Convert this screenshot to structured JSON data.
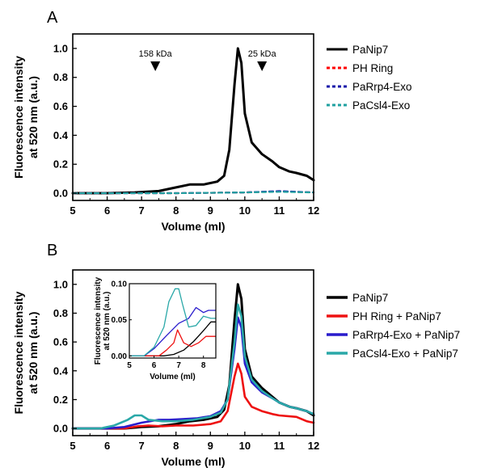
{
  "chart_data": [
    {
      "panel_label": "A",
      "type": "line",
      "xlabel": "Volume (ml)",
      "ylabel": "Fluorescence intensity\nat 520 nm (a.u.)",
      "xlim": [
        5,
        12
      ],
      "ylim": [
        -0.05,
        1.1
      ],
      "xticks": [
        5,
        6,
        7,
        8,
        9,
        10,
        11,
        12
      ],
      "yticks": [
        0.0,
        0.2,
        0.4,
        0.6,
        0.8,
        1.0
      ],
      "markers": [
        {
          "label": "158 kDa",
          "x": 7.4
        },
        {
          "label": "25 kDa",
          "x": 10.5
        }
      ],
      "legend_position": "right",
      "series": [
        {
          "name": "PaNip7",
          "color": "#000000",
          "style": "solid",
          "points": [
            [
              5,
              0.0
            ],
            [
              6,
              0.0
            ],
            [
              6.8,
              0.005
            ],
            [
              7.5,
              0.015
            ],
            [
              8.0,
              0.04
            ],
            [
              8.4,
              0.06
            ],
            [
              8.8,
              0.06
            ],
            [
              9.2,
              0.08
            ],
            [
              9.4,
              0.12
            ],
            [
              9.55,
              0.3
            ],
            [
              9.7,
              0.75
            ],
            [
              9.8,
              1.0
            ],
            [
              9.9,
              0.9
            ],
            [
              10.0,
              0.55
            ],
            [
              10.2,
              0.35
            ],
            [
              10.5,
              0.27
            ],
            [
              10.8,
              0.22
            ],
            [
              11.0,
              0.18
            ],
            [
              11.3,
              0.15
            ],
            [
              11.5,
              0.14
            ],
            [
              11.8,
              0.12
            ],
            [
              12,
              0.09
            ]
          ]
        },
        {
          "name": "PH Ring",
          "color": "#ff0000",
          "style": "dashed",
          "points": [
            [
              5,
              0.0
            ],
            [
              8,
              0.0
            ],
            [
              10,
              0.005
            ],
            [
              11,
              0.012
            ],
            [
              12,
              0.005
            ]
          ]
        },
        {
          "name": "PaRrp4-Exo",
          "color": "#1a1aaa",
          "style": "dashed",
          "points": [
            [
              5,
              0.0
            ],
            [
              8,
              0.0
            ],
            [
              10,
              0.005
            ],
            [
              11,
              0.015
            ],
            [
              12,
              0.005
            ]
          ]
        },
        {
          "name": "PaCsl4-Exo",
          "color": "#20a0a0",
          "style": "dashed",
          "points": [
            [
              5,
              0.0
            ],
            [
              8,
              0.0
            ],
            [
              10,
              0.005
            ],
            [
              11,
              0.01
            ],
            [
              12,
              0.005
            ]
          ]
        }
      ]
    },
    {
      "panel_label": "B",
      "type": "line",
      "xlabel": "Volume (ml)",
      "ylabel": "Fluorescence intensity\nat 520 nm (a.u.)",
      "xlim": [
        5,
        12
      ],
      "ylim": [
        -0.05,
        1.1
      ],
      "xticks": [
        5,
        6,
        7,
        8,
        9,
        10,
        11,
        12
      ],
      "yticks": [
        0.0,
        0.2,
        0.4,
        0.6,
        0.8,
        1.0
      ],
      "legend_position": "right",
      "series": [
        {
          "name": "PaNip7",
          "color": "#000000",
          "style": "solid",
          "points": [
            [
              5,
              0.0
            ],
            [
              6.5,
              0.0
            ],
            [
              7.0,
              0.01
            ],
            [
              7.5,
              0.015
            ],
            [
              8.0,
              0.03
            ],
            [
              8.4,
              0.05
            ],
            [
              8.8,
              0.06
            ],
            [
              9.2,
              0.08
            ],
            [
              9.4,
              0.13
            ],
            [
              9.55,
              0.3
            ],
            [
              9.7,
              0.75
            ],
            [
              9.8,
              1.0
            ],
            [
              9.9,
              0.9
            ],
            [
              10.0,
              0.55
            ],
            [
              10.2,
              0.36
            ],
            [
              10.5,
              0.28
            ],
            [
              10.8,
              0.22
            ],
            [
              11.0,
              0.18
            ],
            [
              11.3,
              0.15
            ],
            [
              11.5,
              0.14
            ],
            [
              11.8,
              0.12
            ],
            [
              12,
              0.09
            ]
          ]
        },
        {
          "name": "PH Ring + PaNip7",
          "color": "#ee1111",
          "style": "solid",
          "points": [
            [
              5,
              0.0
            ],
            [
              6.5,
              0.0
            ],
            [
              6.9,
              0.015
            ],
            [
              7.2,
              0.02
            ],
            [
              7.6,
              0.015
            ],
            [
              8.0,
              0.02
            ],
            [
              8.5,
              0.02
            ],
            [
              9.0,
              0.03
            ],
            [
              9.3,
              0.05
            ],
            [
              9.5,
              0.12
            ],
            [
              9.7,
              0.36
            ],
            [
              9.8,
              0.45
            ],
            [
              9.9,
              0.38
            ],
            [
              10.0,
              0.22
            ],
            [
              10.2,
              0.15
            ],
            [
              10.5,
              0.12
            ],
            [
              10.8,
              0.1
            ],
            [
              11.0,
              0.09
            ],
            [
              11.5,
              0.08
            ],
            [
              11.8,
              0.05
            ],
            [
              12,
              0.04
            ]
          ]
        },
        {
          "name": "PaRrp4-Exo + PaNip7",
          "color": "#2a1ccc",
          "style": "solid",
          "points": [
            [
              5,
              0.0
            ],
            [
              6.0,
              0.0
            ],
            [
              6.5,
              0.01
            ],
            [
              7.0,
              0.04
            ],
            [
              7.5,
              0.06
            ],
            [
              7.8,
              0.06
            ],
            [
              8.2,
              0.065
            ],
            [
              8.6,
              0.07
            ],
            [
              9.0,
              0.085
            ],
            [
              9.3,
              0.12
            ],
            [
              9.5,
              0.2
            ],
            [
              9.7,
              0.55
            ],
            [
              9.8,
              0.77
            ],
            [
              9.9,
              0.7
            ],
            [
              10.0,
              0.45
            ],
            [
              10.2,
              0.32
            ],
            [
              10.5,
              0.25
            ],
            [
              10.8,
              0.21
            ],
            [
              11.0,
              0.18
            ],
            [
              11.3,
              0.15
            ],
            [
              11.5,
              0.14
            ],
            [
              11.8,
              0.12
            ],
            [
              12,
              0.1
            ]
          ]
        },
        {
          "name": "PaCsl4-Exo + PaNip7",
          "color": "#2aa8a8",
          "style": "solid",
          "points": [
            [
              5,
              0.0
            ],
            [
              5.8,
              0.0
            ],
            [
              6.2,
              0.02
            ],
            [
              6.6,
              0.06
            ],
            [
              6.8,
              0.09
            ],
            [
              7.0,
              0.09
            ],
            [
              7.2,
              0.06
            ],
            [
              7.6,
              0.05
            ],
            [
              8.0,
              0.05
            ],
            [
              8.5,
              0.06
            ],
            [
              9.0,
              0.08
            ],
            [
              9.3,
              0.11
            ],
            [
              9.5,
              0.2
            ],
            [
              9.7,
              0.6
            ],
            [
              9.8,
              0.86
            ],
            [
              9.9,
              0.78
            ],
            [
              10.0,
              0.5
            ],
            [
              10.2,
              0.34
            ],
            [
              10.5,
              0.26
            ],
            [
              10.8,
              0.21
            ],
            [
              11.0,
              0.18
            ],
            [
              11.3,
              0.15
            ],
            [
              11.5,
              0.14
            ],
            [
              11.8,
              0.12
            ],
            [
              12,
              0.1
            ]
          ]
        }
      ],
      "inset": {
        "xlabel": "Volume (ml)",
        "ylabel": "Fluorescence intensity\nat 520 nm (a.u.)",
        "xlim": [
          5,
          8.5
        ],
        "ylim": [
          -0.003,
          0.1
        ],
        "xticks": [
          5,
          6,
          7,
          8
        ],
        "yticks": [
          0.0,
          0.05,
          0.1
        ],
        "ytick_labels": [
          "0.00",
          "0.05",
          "0.10"
        ],
        "series": [
          {
            "name": "PaNip7",
            "color": "#000000",
            "points": [
              [
                5,
                0.0
              ],
              [
                6.4,
                0.0
              ],
              [
                6.8,
                0.002
              ],
              [
                7.2,
                0.008
              ],
              [
                7.6,
                0.02
              ],
              [
                8.0,
                0.035
              ],
              [
                8.3,
                0.047
              ],
              [
                8.5,
                0.047
              ]
            ]
          },
          {
            "name": "PH Ring + PaNip7",
            "color": "#ee1111",
            "points": [
              [
                5,
                0.0
              ],
              [
                6.2,
                0.0
              ],
              [
                6.5,
                0.008
              ],
              [
                6.8,
                0.018
              ],
              [
                6.95,
                0.036
              ],
              [
                7.2,
                0.018
              ],
              [
                7.5,
                0.013
              ],
              [
                7.8,
                0.018
              ],
              [
                8.1,
                0.027
              ],
              [
                8.5,
                0.027
              ]
            ]
          },
          {
            "name": "PaRrp4-Exo + PaNip7",
            "color": "#2a1ccc",
            "points": [
              [
                5,
                0.0
              ],
              [
                5.6,
                0.0
              ],
              [
                6.0,
                0.01
              ],
              [
                6.5,
                0.028
              ],
              [
                7.0,
                0.045
              ],
              [
                7.4,
                0.052
              ],
              [
                7.7,
                0.067
              ],
              [
                8.0,
                0.06
              ],
              [
                8.2,
                0.063
              ],
              [
                8.5,
                0.063
              ]
            ]
          },
          {
            "name": "PaCsl4-Exo + PaNip7",
            "color": "#2aa8a8",
            "points": [
              [
                5,
                0.0
              ],
              [
                5.6,
                0.0
              ],
              [
                6.0,
                0.012
              ],
              [
                6.4,
                0.04
              ],
              [
                6.6,
                0.075
              ],
              [
                6.85,
                0.093
              ],
              [
                7.0,
                0.093
              ],
              [
                7.15,
                0.072
              ],
              [
                7.4,
                0.04
              ],
              [
                7.7,
                0.042
              ],
              [
                8.0,
                0.055
              ],
              [
                8.3,
                0.052
              ],
              [
                8.5,
                0.052
              ]
            ]
          }
        ]
      }
    }
  ]
}
